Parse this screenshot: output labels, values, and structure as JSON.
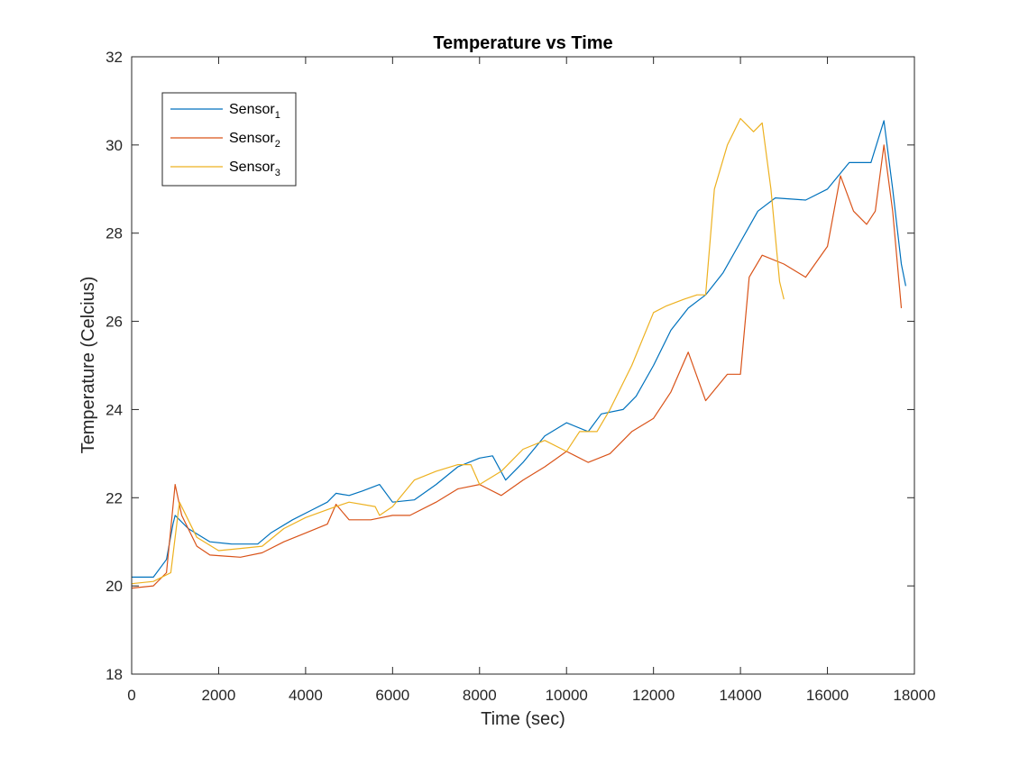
{
  "chart_data": {
    "type": "line",
    "title": "Temperature vs Time",
    "xlabel": "Time (sec)",
    "ylabel": "Temperature (Celcius)",
    "xlim": [
      0,
      18000
    ],
    "ylim": [
      18,
      32
    ],
    "xticks": [
      0,
      2000,
      4000,
      6000,
      8000,
      10000,
      12000,
      14000,
      16000,
      18000
    ],
    "yticks": [
      18,
      20,
      22,
      24,
      26,
      28,
      30,
      32
    ],
    "grid": false,
    "legend_position": "top-left",
    "series": [
      {
        "name": "Sensor",
        "subscript": "1",
        "color": "#0072BD",
        "points": [
          [
            0,
            20.2
          ],
          [
            500,
            20.2
          ],
          [
            800,
            20.6
          ],
          [
            950,
            21.4
          ],
          [
            1000,
            21.6
          ],
          [
            1300,
            21.3
          ],
          [
            1800,
            21.0
          ],
          [
            2300,
            20.95
          ],
          [
            2900,
            20.95
          ],
          [
            3200,
            21.2
          ],
          [
            3700,
            21.5
          ],
          [
            4100,
            21.7
          ],
          [
            4500,
            21.9
          ],
          [
            4700,
            22.1
          ],
          [
            5000,
            22.05
          ],
          [
            5300,
            22.15
          ],
          [
            5700,
            22.3
          ],
          [
            6000,
            21.9
          ],
          [
            6500,
            21.95
          ],
          [
            7000,
            22.3
          ],
          [
            7500,
            22.7
          ],
          [
            8000,
            22.9
          ],
          [
            8300,
            22.95
          ],
          [
            8600,
            22.4
          ],
          [
            9000,
            22.8
          ],
          [
            9500,
            23.4
          ],
          [
            10000,
            23.7
          ],
          [
            10500,
            23.5
          ],
          [
            10800,
            23.9
          ],
          [
            11300,
            24.0
          ],
          [
            11600,
            24.3
          ],
          [
            12000,
            25.0
          ],
          [
            12400,
            25.8
          ],
          [
            12800,
            26.3
          ],
          [
            13200,
            26.6
          ],
          [
            13600,
            27.1
          ],
          [
            14000,
            27.8
          ],
          [
            14400,
            28.5
          ],
          [
            14800,
            28.8
          ],
          [
            15500,
            28.75
          ],
          [
            16000,
            29.0
          ],
          [
            16500,
            29.6
          ],
          [
            17000,
            29.6
          ],
          [
            17300,
            30.55
          ],
          [
            17500,
            29.0
          ],
          [
            17700,
            27.3
          ],
          [
            17800,
            26.8
          ]
        ]
      },
      {
        "name": "Sensor",
        "subscript": "2",
        "color": "#D95319",
        "points": [
          [
            0,
            19.95
          ],
          [
            500,
            20.0
          ],
          [
            800,
            20.3
          ],
          [
            950,
            21.8
          ],
          [
            1000,
            22.3
          ],
          [
            1150,
            21.6
          ],
          [
            1500,
            20.9
          ],
          [
            1800,
            20.7
          ],
          [
            2500,
            20.65
          ],
          [
            3000,
            20.75
          ],
          [
            3500,
            21.0
          ],
          [
            4000,
            21.2
          ],
          [
            4500,
            21.4
          ],
          [
            4700,
            21.85
          ],
          [
            5000,
            21.5
          ],
          [
            5500,
            21.5
          ],
          [
            6000,
            21.6
          ],
          [
            6400,
            21.6
          ],
          [
            7000,
            21.9
          ],
          [
            7500,
            22.2
          ],
          [
            8000,
            22.3
          ],
          [
            8500,
            22.05
          ],
          [
            9000,
            22.4
          ],
          [
            9500,
            22.7
          ],
          [
            10000,
            23.05
          ],
          [
            10500,
            22.8
          ],
          [
            11000,
            23.0
          ],
          [
            11500,
            23.5
          ],
          [
            12000,
            23.8
          ],
          [
            12400,
            24.4
          ],
          [
            12800,
            25.3
          ],
          [
            13200,
            24.2
          ],
          [
            13700,
            24.8
          ],
          [
            14000,
            24.8
          ],
          [
            14200,
            27.0
          ],
          [
            14500,
            27.5
          ],
          [
            15000,
            27.3
          ],
          [
            15500,
            27.0
          ],
          [
            16000,
            27.7
          ],
          [
            16300,
            29.3
          ],
          [
            16600,
            28.5
          ],
          [
            16900,
            28.2
          ],
          [
            17100,
            28.5
          ],
          [
            17300,
            30.0
          ],
          [
            17500,
            28.5
          ],
          [
            17700,
            26.3
          ]
        ]
      },
      {
        "name": "Sensor",
        "subscript": "3",
        "color": "#EDB120",
        "points": [
          [
            0,
            20.05
          ],
          [
            500,
            20.1
          ],
          [
            900,
            20.3
          ],
          [
            1100,
            21.9
          ],
          [
            1500,
            21.1
          ],
          [
            2000,
            20.8
          ],
          [
            2500,
            20.85
          ],
          [
            3000,
            20.9
          ],
          [
            3500,
            21.3
          ],
          [
            4000,
            21.55
          ],
          [
            4700,
            21.8
          ],
          [
            5000,
            21.9
          ],
          [
            5600,
            21.8
          ],
          [
            5700,
            21.6
          ],
          [
            6000,
            21.8
          ],
          [
            6500,
            22.4
          ],
          [
            7000,
            22.6
          ],
          [
            7500,
            22.75
          ],
          [
            7800,
            22.75
          ],
          [
            8000,
            22.3
          ],
          [
            8500,
            22.6
          ],
          [
            9000,
            23.1
          ],
          [
            9500,
            23.3
          ],
          [
            10000,
            23.05
          ],
          [
            10300,
            23.5
          ],
          [
            10700,
            23.5
          ],
          [
            11000,
            24.0
          ],
          [
            11500,
            25.0
          ],
          [
            12000,
            26.2
          ],
          [
            12300,
            26.35
          ],
          [
            12700,
            26.5
          ],
          [
            13000,
            26.6
          ],
          [
            13200,
            26.6
          ],
          [
            13400,
            29.0
          ],
          [
            13700,
            30.0
          ],
          [
            14000,
            30.6
          ],
          [
            14300,
            30.3
          ],
          [
            14500,
            30.5
          ],
          [
            14700,
            29.0
          ],
          [
            14900,
            26.9
          ],
          [
            15000,
            26.5
          ]
        ]
      }
    ]
  }
}
